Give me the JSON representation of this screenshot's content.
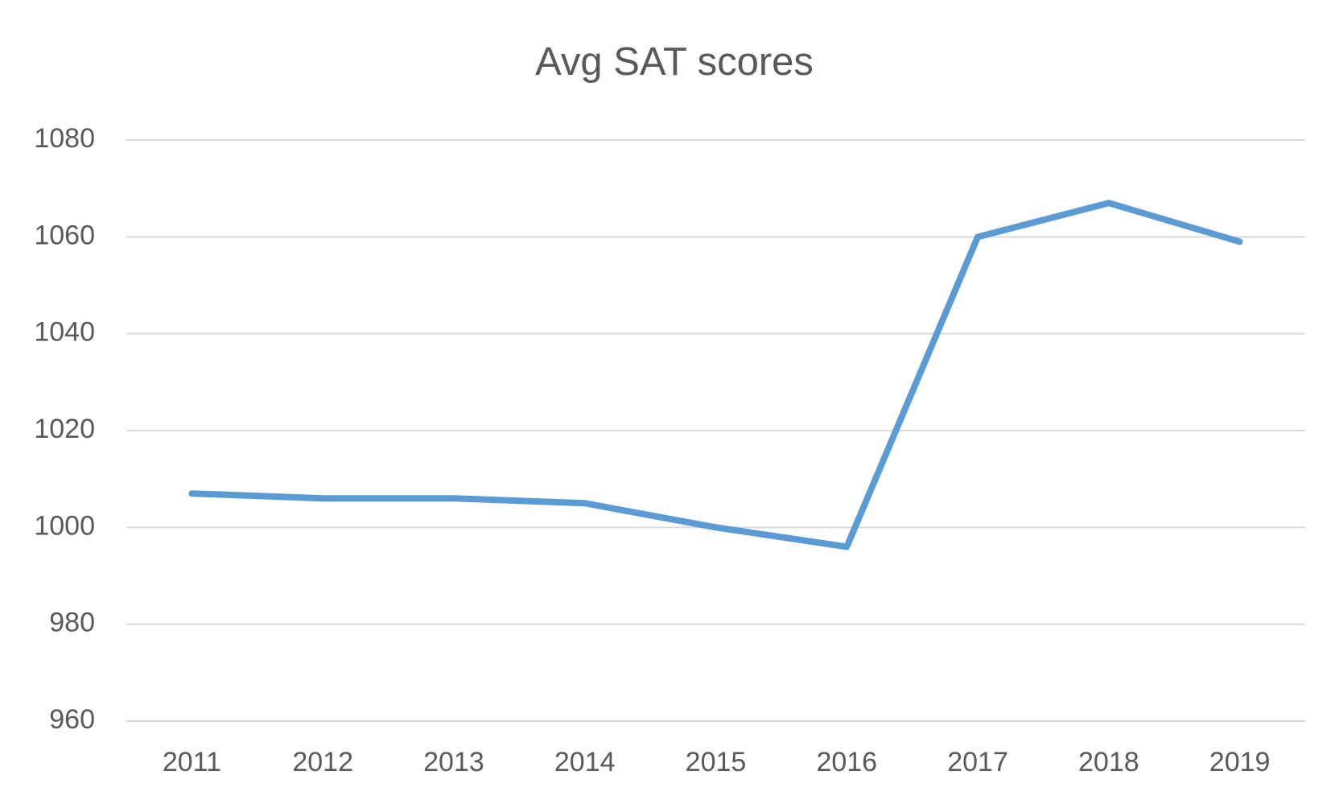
{
  "chart_data": {
    "type": "line",
    "title": "Avg SAT scores",
    "categories": [
      "2011",
      "2012",
      "2013",
      "2014",
      "2015",
      "2016",
      "2017",
      "2018",
      "2019"
    ],
    "values": [
      1007,
      1006,
      1006,
      1005,
      1000,
      996,
      1060,
      1067,
      1059
    ],
    "color": "#5b9bd5",
    "ylim": [
      960,
      1080
    ],
    "yticks": [
      960,
      980,
      1000,
      1020,
      1040,
      1060,
      1080
    ],
    "grid": true
  }
}
